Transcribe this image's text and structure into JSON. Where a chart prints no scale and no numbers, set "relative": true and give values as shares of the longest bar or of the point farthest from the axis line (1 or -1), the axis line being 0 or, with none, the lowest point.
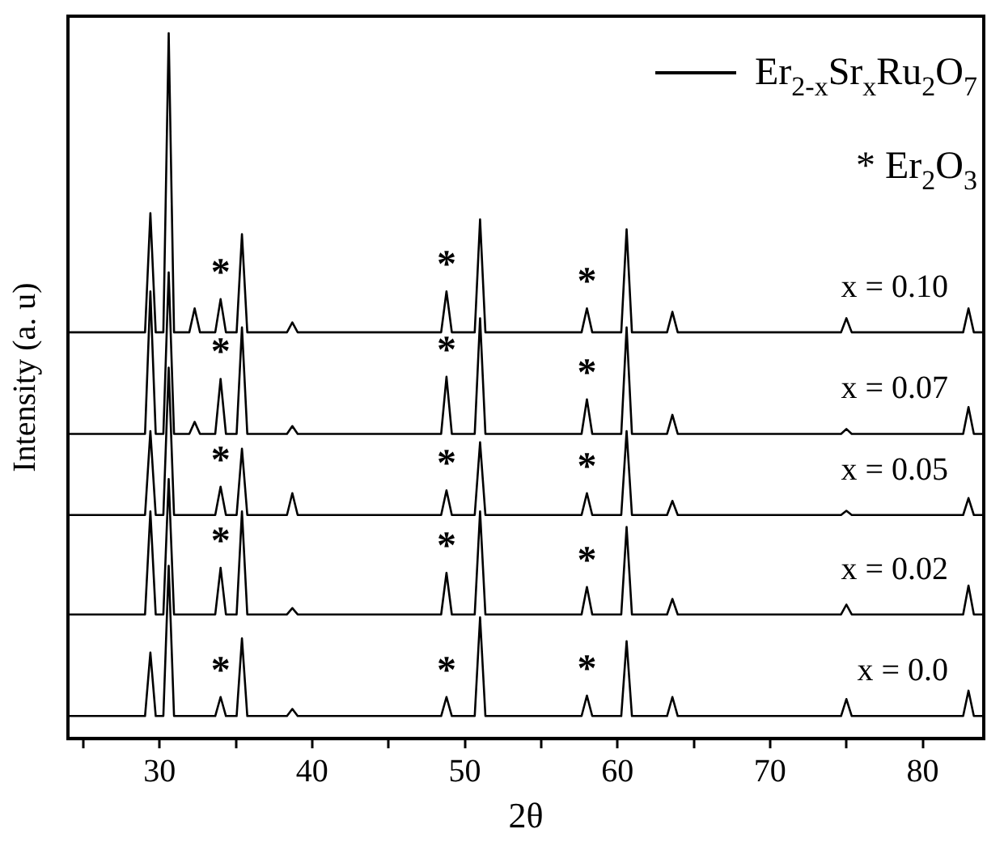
{
  "chart_data": {
    "type": "line",
    "relative": true,
    "xlabel": "2θ",
    "ylabel": "Intensity (a. u)",
    "xlim": [
      24,
      84
    ],
    "xticks": [
      {
        "value": 25,
        "label": null
      },
      30,
      {
        "value": 35,
        "label": null
      },
      40,
      {
        "value": 45,
        "label": null
      },
      50,
      {
        "value": 55,
        "label": null
      },
      60,
      {
        "value": 65,
        "label": null
      },
      70,
      {
        "value": 75,
        "label": null
      },
      80
    ],
    "grid": false,
    "legend": false,
    "marker": "none",
    "line_style": "solid",
    "x": [
      24,
      29.05,
      29.4,
      29.75,
      30.25,
      30.6,
      30.95,
      31.95,
      32.3,
      32.65,
      33.65,
      34.0,
      34.35,
      35.05,
      35.4,
      35.75,
      38.35,
      38.7,
      39.05,
      48.45,
      48.8,
      49.15,
      50.65,
      51.0,
      51.35,
      57.65,
      58.0,
      58.35,
      60.25,
      60.6,
      60.95,
      63.25,
      63.6,
      63.95,
      74.65,
      75.0,
      75.35,
      82.65,
      83.0,
      83.35,
      84
    ],
    "series": [
      {
        "name": "x = 0.10",
        "color": "#000000",
        "values": [
          0.576,
          0.576,
          0.745,
          0.576,
          0.576,
          1.0,
          0.576,
          0.576,
          0.61,
          0.576,
          0.576,
          0.623,
          0.576,
          0.576,
          0.715,
          0.576,
          0.576,
          0.59,
          0.576,
          0.576,
          0.634,
          0.576,
          0.576,
          0.736,
          0.576,
          0.576,
          0.61,
          0.576,
          0.576,
          0.722,
          0.576,
          0.576,
          0.605,
          0.576,
          0.576,
          0.596,
          0.576,
          0.576,
          0.61,
          0.576,
          0.576
        ]
      },
      {
        "name": "x = 0.07",
        "color": "#000000",
        "values": [
          0.432,
          0.432,
          0.634,
          0.432,
          0.432,
          0.661,
          0.432,
          0.432,
          0.449,
          0.432,
          0.432,
          0.51,
          0.432,
          0.432,
          0.583,
          0.432,
          0.432,
          0.443,
          0.432,
          0.432,
          0.513,
          0.432,
          0.432,
          0.596,
          0.432,
          0.432,
          0.481,
          0.432,
          0.432,
          0.583,
          0.432,
          0.432,
          0.459,
          0.432,
          0.432,
          0.439,
          0.432,
          0.432,
          0.47,
          0.432,
          0.432
        ]
      },
      {
        "name": "x = 0.05",
        "color": "#000000",
        "values": [
          0.317,
          0.317,
          0.436,
          0.317,
          0.317,
          0.526,
          0.317,
          0.317,
          0.317,
          0.317,
          0.317,
          0.357,
          0.317,
          0.317,
          0.411,
          0.317,
          0.317,
          0.348,
          0.317,
          0.317,
          0.352,
          0.317,
          0.317,
          0.42,
          0.317,
          0.317,
          0.348,
          0.317,
          0.317,
          0.436,
          0.317,
          0.317,
          0.337,
          0.317,
          0.317,
          0.323,
          0.317,
          0.317,
          0.341,
          0.317,
          0.317
        ]
      },
      {
        "name": "x = 0.02",
        "color": "#000000",
        "values": [
          0.176,
          0.176,
          0.322,
          0.176,
          0.176,
          0.368,
          0.176,
          0.176,
          0.176,
          0.176,
          0.176,
          0.242,
          0.176,
          0.176,
          0.322,
          0.176,
          0.176,
          0.185,
          0.176,
          0.176,
          0.235,
          0.176,
          0.176,
          0.322,
          0.176,
          0.176,
          0.215,
          0.176,
          0.176,
          0.3,
          0.176,
          0.176,
          0.198,
          0.176,
          0.176,
          0.19,
          0.176,
          0.176,
          0.217,
          0.176,
          0.176
        ]
      },
      {
        "name": "x = 0.0",
        "color": "#000000",
        "values": [
          0.032,
          0.032,
          0.122,
          0.032,
          0.032,
          0.245,
          0.032,
          0.032,
          0.032,
          0.032,
          0.032,
          0.059,
          0.032,
          0.032,
          0.142,
          0.032,
          0.032,
          0.042,
          0.032,
          0.032,
          0.059,
          0.032,
          0.032,
          0.172,
          0.032,
          0.032,
          0.061,
          0.032,
          0.032,
          0.138,
          0.032,
          0.032,
          0.059,
          0.032,
          0.032,
          0.056,
          0.032,
          0.032,
          0.068,
          0.032,
          0.032
        ]
      }
    ],
    "annotations": [
      "Er$_{2-x}$Sr$_{x}$Ru$_{2}$O$_{7}$",
      "* Er$_{2}$O$_{3}$",
      {
        "text": "*",
        "x": 34.0,
        "y": 0.623
      },
      {
        "text": "*",
        "x": 48.8,
        "y": 0.634
      },
      {
        "text": "*",
        "x": 58.0,
        "y": 0.61
      },
      {
        "text": "*",
        "x": 34.0,
        "y": 0.51
      },
      {
        "text": "*",
        "x": 48.8,
        "y": 0.513
      },
      {
        "text": "*",
        "x": 58.0,
        "y": 0.481
      },
      {
        "text": "*",
        "x": 34.0,
        "y": 0.357
      },
      {
        "text": "*",
        "x": 48.8,
        "y": 0.352
      },
      {
        "text": "*",
        "x": 58.0,
        "y": 0.348
      },
      {
        "text": "*",
        "x": 34.0,
        "y": 0.242
      },
      {
        "text": "*",
        "x": 48.8,
        "y": 0.235
      },
      {
        "text": "*",
        "x": 58.0,
        "y": 0.215
      },
      {
        "text": "*",
        "x": 34.0,
        "y": 0.059
      },
      {
        "text": "*",
        "x": 48.8,
        "y": 0.059
      },
      {
        "text": "*",
        "x": 58.0,
        "y": 0.061
      }
    ]
  }
}
